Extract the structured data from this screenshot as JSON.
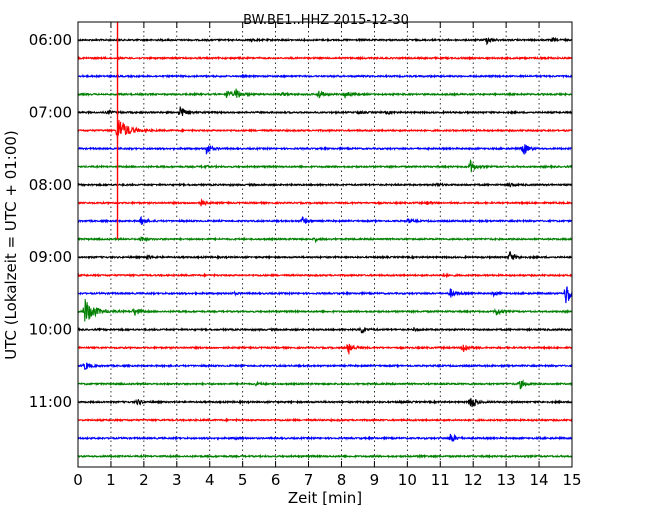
{
  "chart_data": {
    "type": "line",
    "title": "BW.BE1..HHZ 2015-12-30",
    "xlabel": "Zeit  [min]",
    "ylabel": "UTC (Lokalzeit = UTC + 01:00)",
    "xlim": [
      0,
      15
    ],
    "x_ticks": [
      "0",
      "1",
      "2",
      "3",
      "4",
      "5",
      "6",
      "7",
      "8",
      "9",
      "10",
      "11",
      "12",
      "13",
      "14",
      "15"
    ],
    "y_ticks": [
      {
        "label": "06:00",
        "row": 0
      },
      {
        "label": "07:00",
        "row": 4
      },
      {
        "label": "08:00",
        "row": 8
      },
      {
        "label": "09:00",
        "row": 12
      },
      {
        "label": "10:00",
        "row": 16
      },
      {
        "label": "11:00",
        "row": 20
      }
    ],
    "grid": "vertical dotted",
    "row_interval_min": 15,
    "row_colors": [
      "#000000",
      "#ff0000",
      "#0000ff",
      "#008000"
    ],
    "series": [
      {
        "start": "06:00",
        "events": [
          {
            "t": 12.4,
            "amp": 0.45
          },
          {
            "t": 14.4,
            "amp": 0.2
          },
          {
            "t": 5.3,
            "amp": 0.1
          }
        ]
      },
      {
        "start": "06:15",
        "events": [
          {
            "t": 14.1,
            "amp": 0.15
          }
        ]
      },
      {
        "start": "06:30",
        "events": []
      },
      {
        "start": "06:45",
        "events": [
          {
            "t": 4.5,
            "amp": 0.5
          },
          {
            "t": 4.8,
            "amp": 0.6
          },
          {
            "t": 7.3,
            "amp": 0.55
          },
          {
            "t": 8.1,
            "amp": 0.5
          },
          {
            "t": 6.2,
            "amp": 0.2
          }
        ]
      },
      {
        "start": "07:00",
        "events": [
          {
            "t": 3.1,
            "amp": 0.75
          },
          {
            "t": 0.9,
            "amp": 0.25
          },
          {
            "t": 8.5,
            "amp": 0.2
          },
          {
            "t": 9.4,
            "amp": 0.15
          }
        ]
      },
      {
        "start": "07:15",
        "events": [
          {
            "t": 1.2,
            "amp": 1.6
          }
        ]
      },
      {
        "start": "07:30",
        "events": [
          {
            "t": 3.9,
            "amp": 0.7
          },
          {
            "t": 13.5,
            "amp": 0.85
          }
        ]
      },
      {
        "start": "07:45",
        "events": [
          {
            "t": 11.9,
            "amp": 0.8
          },
          {
            "t": 3.8,
            "amp": 0.15
          }
        ]
      },
      {
        "start": "08:00",
        "events": [
          {
            "t": 13.1,
            "amp": 0.25
          },
          {
            "t": 10.9,
            "amp": 0.2
          }
        ]
      },
      {
        "start": "08:15",
        "events": [
          {
            "t": 3.7,
            "amp": 0.5
          },
          {
            "t": 10.6,
            "amp": 0.15
          }
        ]
      },
      {
        "start": "08:30",
        "events": [
          {
            "t": 1.9,
            "amp": 0.55
          },
          {
            "t": 6.8,
            "amp": 0.55
          },
          {
            "t": 10.0,
            "amp": 0.2
          }
        ]
      },
      {
        "start": "08:45",
        "events": [
          {
            "t": 1.9,
            "amp": 0.35
          },
          {
            "t": 7.2,
            "amp": 0.2
          }
        ]
      },
      {
        "start": "09:00",
        "events": [
          {
            "t": 13.1,
            "amp": 0.75
          },
          {
            "t": 2.1,
            "amp": 0.3
          }
        ]
      },
      {
        "start": "09:15",
        "events": [
          {
            "t": 11.1,
            "amp": 0.15
          }
        ]
      },
      {
        "start": "09:30",
        "events": [
          {
            "t": 11.3,
            "amp": 0.55
          },
          {
            "t": 14.8,
            "amp": 1.3
          },
          {
            "t": 12.6,
            "amp": 0.25
          },
          {
            "t": 4.7,
            "amp": 0.15
          }
        ]
      },
      {
        "start": "09:45",
        "events": [
          {
            "t": 0.2,
            "amp": 1.5
          },
          {
            "t": 1.7,
            "amp": 0.6
          },
          {
            "t": 12.7,
            "amp": 0.45
          }
        ]
      },
      {
        "start": "10:00",
        "events": [
          {
            "t": 8.6,
            "amp": 0.5
          },
          {
            "t": 10.2,
            "amp": 0.2
          }
        ]
      },
      {
        "start": "10:15",
        "events": [
          {
            "t": 8.2,
            "amp": 0.85
          },
          {
            "t": 11.7,
            "amp": 0.65
          }
        ]
      },
      {
        "start": "10:30",
        "events": [
          {
            "t": 0.2,
            "amp": 0.55
          }
        ]
      },
      {
        "start": "10:45",
        "events": [
          {
            "t": 13.4,
            "amp": 0.6
          },
          {
            "t": 5.4,
            "amp": 0.15
          }
        ]
      },
      {
        "start": "11:00",
        "events": [
          {
            "t": 11.9,
            "amp": 1.0
          },
          {
            "t": 1.8,
            "amp": 0.35
          },
          {
            "t": 9.8,
            "amp": 0.15
          }
        ]
      },
      {
        "start": "11:15",
        "events": []
      },
      {
        "start": "11:30",
        "events": [
          {
            "t": 11.3,
            "amp": 0.65
          },
          {
            "t": 4.8,
            "amp": 0.1
          }
        ]
      },
      {
        "start": "11:45",
        "events": [
          {
            "t": 10.4,
            "amp": 0.1
          }
        ]
      }
    ]
  }
}
